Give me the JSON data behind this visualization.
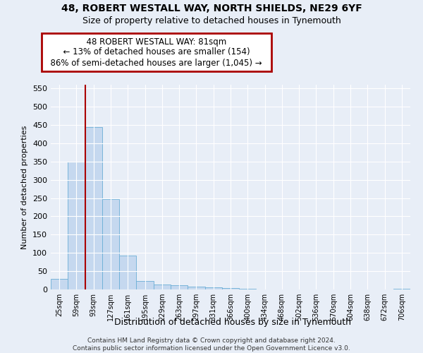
{
  "title1": "48, ROBERT WESTALL WAY, NORTH SHIELDS, NE29 6YF",
  "title2": "Size of property relative to detached houses in Tynemouth",
  "xlabel": "Distribution of detached houses by size in Tynemouth",
  "ylabel": "Number of detached properties",
  "categories": [
    "25sqm",
    "59sqm",
    "93sqm",
    "127sqm",
    "161sqm",
    "195sqm",
    "229sqm",
    "263sqm",
    "297sqm",
    "331sqm",
    "366sqm",
    "400sqm",
    "434sqm",
    "468sqm",
    "502sqm",
    "536sqm",
    "570sqm",
    "604sqm",
    "638sqm",
    "672sqm",
    "706sqm"
  ],
  "values": [
    29,
    350,
    445,
    248,
    93,
    23,
    14,
    11,
    8,
    5,
    3,
    2,
    0,
    0,
    0,
    0,
    0,
    0,
    0,
    0,
    2
  ],
  "bar_color": "#c5d8ef",
  "bar_edge_color": "#6baed6",
  "property_line_x": 1.5,
  "property_line_color": "#aa0000",
  "annotation_text": "  48 ROBERT WESTALL WAY: 81sqm  \n  ← 13% of detached houses are smaller (154)  \n  86% of semi-detached houses are larger (1,045) →  ",
  "annotation_box_color": "#aa0000",
  "ylim": [
    0,
    560
  ],
  "yticks": [
    0,
    50,
    100,
    150,
    200,
    250,
    300,
    350,
    400,
    450,
    500,
    550
  ],
  "footnote": "Contains HM Land Registry data © Crown copyright and database right 2024.\nContains public sector information licensed under the Open Government Licence v3.0.",
  "bg_color": "#e8eef7",
  "plot_bg_color": "#e8eef7",
  "grid_color": "#ffffff",
  "title1_fontsize": 10,
  "title2_fontsize": 9
}
